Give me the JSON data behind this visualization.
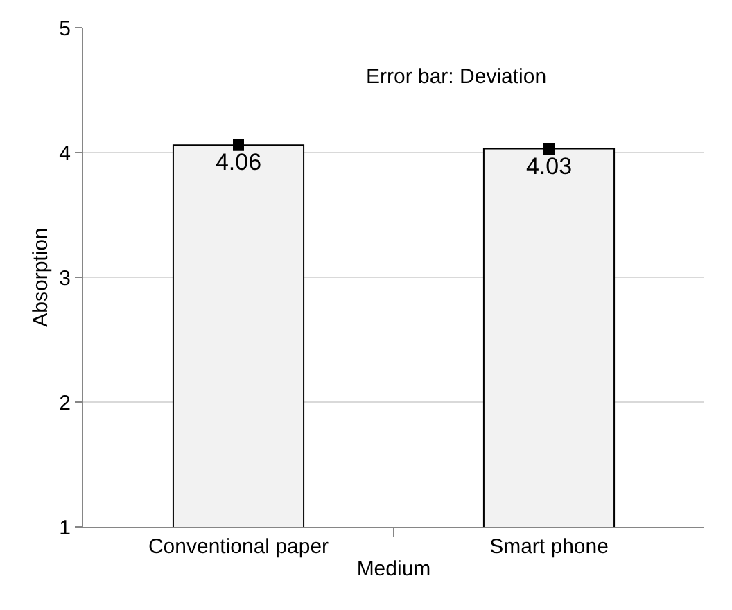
{
  "chart_data": {
    "type": "bar",
    "xlabel": "Medium",
    "ylabel": "Absorption",
    "categories": [
      "Conventional paper",
      "Smart phone"
    ],
    "values": [
      4.06,
      4.03
    ],
    "errors": [
      0.02,
      0.02
    ],
    "color": "#f2f2f2",
    "ylim": [
      1,
      5
    ],
    "yticks": [
      1,
      2,
      3,
      4,
      5
    ],
    "grid": "y",
    "data_labels": true,
    "annotations": [
      "Error bar: Deviation"
    ]
  }
}
